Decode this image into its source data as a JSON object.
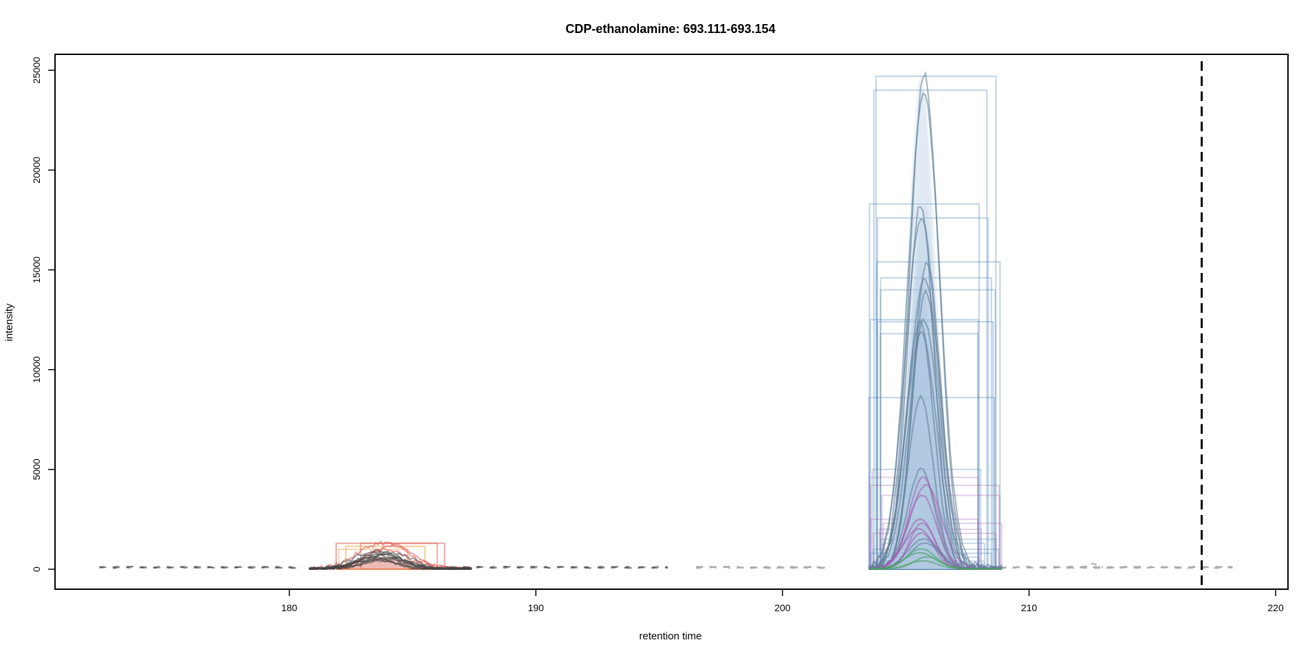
{
  "chart_data": {
    "type": "line",
    "title": "CDP-ethanolamine: 693.111-693.154",
    "xlabel": "retention time",
    "ylabel": "intensity",
    "xlim": [
      170.5,
      220.5
    ],
    "ylim": [
      -1000,
      25800
    ],
    "x_ticks": [
      180,
      190,
      200,
      210,
      220
    ],
    "y_ticks": [
      0,
      5000,
      10000,
      15000,
      20000,
      25000
    ],
    "x_tick_labels": [
      "180",
      "190",
      "200",
      "210",
      "220"
    ],
    "y_tick_labels": [
      "0",
      "5000",
      "10000",
      "15000",
      "20000",
      "25000"
    ],
    "reference_line_x": 217,
    "grid": false,
    "legend": "none",
    "colors": {
      "noise": "#555555",
      "noise_light": "#aaaaaa",
      "main_peak": "#4a82b4",
      "main_fill": "#a9c4e0",
      "early_peak_red": "#e24a4a",
      "early_peak_orange": "#f0a030",
      "minor_purple": "#a060b0",
      "minor_green": "#4aa060"
    },
    "peak_groups": [
      {
        "rt_min": 181.9,
        "rt_max": 186.3,
        "apex_rt": 183.8,
        "apex_intensities": [
          1300,
          1150,
          1000,
          900,
          850,
          800,
          750,
          700,
          650,
          600,
          550,
          500,
          450,
          400
        ]
      },
      {
        "rt_min": 203.5,
        "rt_max": 208.9,
        "apex_rt": 205.7,
        "apex_intensities": [
          24700,
          24000,
          18300,
          17600,
          15400,
          14600,
          14000,
          12500,
          12400,
          11800,
          8600,
          5000,
          4600,
          4200,
          3700,
          2500,
          2300,
          2000,
          1800,
          1500,
          1300,
          1000,
          800,
          600,
          400
        ]
      }
    ]
  }
}
